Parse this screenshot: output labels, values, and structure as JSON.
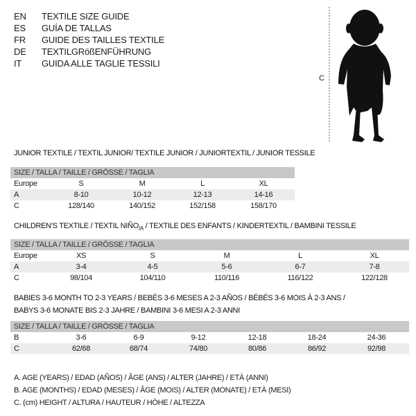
{
  "languages": [
    {
      "code": "EN",
      "text": "TEXTILE SIZE GUIDE"
    },
    {
      "code": "ES",
      "text": "GUÍA DE TALLAS"
    },
    {
      "code": "FR",
      "text": "GUIDE DES TAILLES TEXTILE"
    },
    {
      "code": "DE",
      "text": "TEXTILGRößENFÜHRUNG"
    },
    {
      "code": "IT",
      "text": "GUIDA ALLE TAGLIE TESSILI"
    }
  ],
  "figure": {
    "measure_label": "C"
  },
  "size_header": "SIZE / TALLA / TAILLE / GRÖSSE / TAGLIA",
  "junior": {
    "title": "JUNIOR TEXTILE / TEXTIL JUNIOR/ TEXTILE JUNIOR / JUNIORTEXTIL / JUNIOR TESSILE",
    "rows": [
      {
        "label": "Europe",
        "values": [
          "S",
          "M",
          "L",
          "XL"
        ]
      },
      {
        "label": "A",
        "values": [
          "8-10",
          "10-12",
          "12-13",
          "14-16"
        ]
      },
      {
        "label": "C",
        "values": [
          "128/140",
          "140/152",
          "152/158",
          "158/170"
        ]
      }
    ]
  },
  "children": {
    "title_a": "CHILDREN'S TEXTILE / TEXTIL NIÑO",
    "title_sub": "/A",
    "title_b": " / TEXTILE DES ENFANTS / KINDERTEXTIL / BAMBINI TESSILE",
    "rows": [
      {
        "label": "Europe",
        "values": [
          "XS",
          "S",
          "M",
          "L",
          "XL"
        ]
      },
      {
        "label": "A",
        "values": [
          "3-4",
          "4-5",
          "5-6",
          "6-7",
          "7-8"
        ]
      },
      {
        "label": "C",
        "values": [
          "98/104",
          "104/110",
          "110/116",
          "116/122",
          "122/128"
        ]
      }
    ]
  },
  "babies": {
    "title_line1": "BABIES 3-6 MONTH TO 2-3 YEARS / BEBÉS 3-6 MESES A 2-3 AÑOS / BÉBÉS 3-6 MOIS À 2-3 ANS /",
    "title_line2": "BABYS 3-6 MONATE BIS 2-3 JAHRE / BAMBINI 3-6 MESI A 2-3 ANNI",
    "rows": [
      {
        "label": "B",
        "values": [
          "3-6",
          "6-9",
          "9-12",
          "12-18",
          "18-24",
          "24-36"
        ]
      },
      {
        "label": "C",
        "values": [
          "62/68",
          "68/74",
          "74/80",
          "80/86",
          "86/92",
          "92/98"
        ]
      }
    ]
  },
  "legend": [
    "A. AGE (YEARS) / EDAD (AÑOS) / ÂGE (ANS) / ALTER (JAHRE) / ETÀ (ANNI)",
    "B. AGE (MONTHS) / EDAD (MESES) / ÂGE (MOIS) / ALTER (MONATE) / ETÀ (MESI)",
    "C. (cm) HEIGHT / ALTURA / HAUTEUR / HÖHE / ALTEZZA"
  ]
}
